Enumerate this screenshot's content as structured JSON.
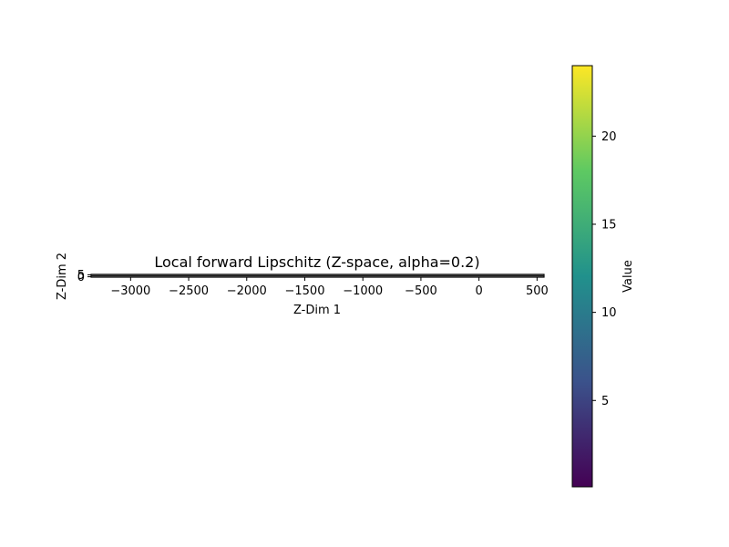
{
  "chart_data": {
    "type": "heatmap",
    "title": "Local forward Lipschitz (Z-space, alpha=0.2)",
    "xlabel": "Z-Dim 1",
    "ylabel": "Z-Dim 2",
    "xlim": [
      -3340,
      560
    ],
    "ylim": [
      -1,
      6
    ],
    "x_ticks": [
      -3000,
      -2500,
      -2000,
      -1500,
      -1000,
      -500,
      0,
      500
    ],
    "x_tick_labels": [
      "−3000",
      "−2500",
      "−2000",
      "−1500",
      "−1000",
      "−500",
      "0",
      "500"
    ],
    "y_ticks": [
      0,
      5
    ],
    "y_tick_labels": [
      "0",
      "5"
    ],
    "colormap": "viridis",
    "colorbar": {
      "label": "Value",
      "min": 0.1,
      "max": 24,
      "ticks": [
        5,
        10,
        15,
        20
      ],
      "tick_labels": [
        "5",
        "10",
        "15",
        "20"
      ]
    },
    "colors": [
      "#440154",
      "#3b528b",
      "#21918c",
      "#5ec962",
      "#fde725"
    ]
  }
}
